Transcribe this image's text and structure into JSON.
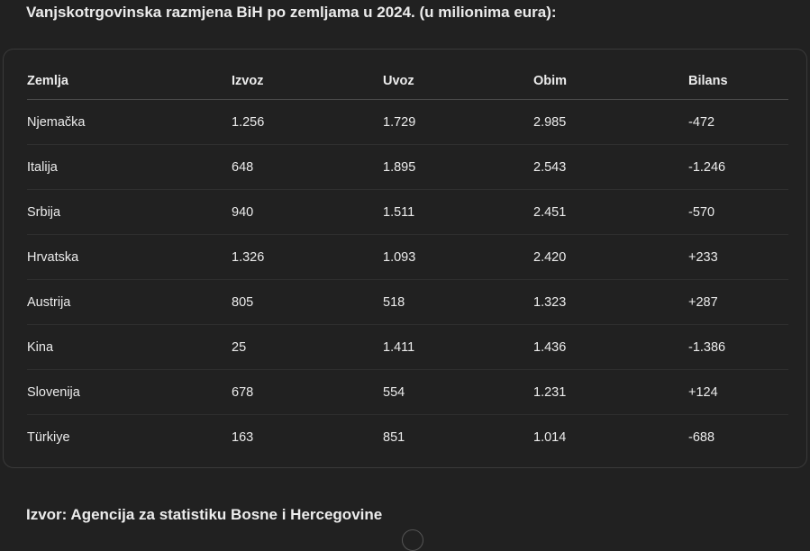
{
  "title": "Vanjskotrgovinska razmjena BiH po zemljama u 2024. (u milionima eura):",
  "table": {
    "headers": [
      "Zemlja",
      "Izvoz",
      "Uvoz",
      "Obim",
      "Bilans"
    ],
    "rows": [
      [
        "Njemačka",
        "1.256",
        "1.729",
        "2.985",
        "-472"
      ],
      [
        "Italija",
        "648",
        "1.895",
        "2.543",
        "-1.246"
      ],
      [
        "Srbija",
        "940",
        "1.511",
        "2.451",
        "-570"
      ],
      [
        "Hrvatska",
        "1.326",
        "1.093",
        "2.420",
        "+233"
      ],
      [
        "Austrija",
        "805",
        "518",
        "1.323",
        "+287"
      ],
      [
        "Kina",
        "25",
        "1.411",
        "1.436",
        "-1.386"
      ],
      [
        "Slovenija",
        "678",
        "554",
        "1.231",
        "+124"
      ],
      [
        "Türkiye",
        "163",
        "851",
        "1.014",
        "-688"
      ]
    ]
  },
  "source": "Izvor: Agencija za statistiku Bosne i Hercegovine"
}
